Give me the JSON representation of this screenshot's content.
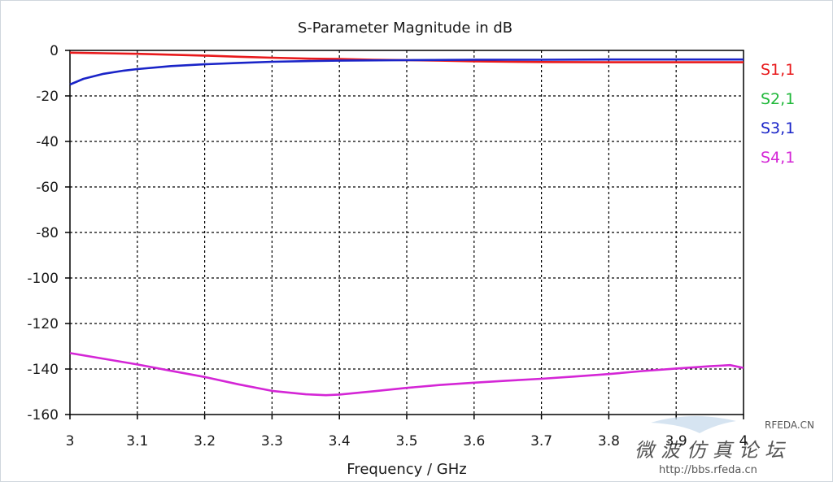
{
  "chart_data": {
    "type": "line",
    "title": "S-Parameter Magnitude in dB",
    "xlabel": "Frequency / GHz",
    "ylabel": "",
    "xlim": [
      3,
      4
    ],
    "ylim": [
      -160,
      0
    ],
    "xticks": [
      3,
      3.1,
      3.2,
      3.3,
      3.4,
      3.5,
      3.6,
      3.7,
      3.8,
      3.9,
      4
    ],
    "xtick_labels": [
      "3",
      "3.1",
      "3.2",
      "3.3",
      "3.4",
      "3.5",
      "3.6",
      "3.7",
      "3.8",
      "3.9",
      "4"
    ],
    "yticks": [
      0,
      -20,
      -40,
      -60,
      -80,
      -100,
      -120,
      -140,
      -160
    ],
    "ytick_labels": [
      "0",
      "-20",
      "-40",
      "-60",
      "-80",
      "-100",
      "-120",
      "-140",
      "-160"
    ],
    "grid": true,
    "legend_position": "right",
    "series": [
      {
        "name": "S1,1",
        "color": "#e8191b",
        "x": [
          3.0,
          3.1,
          3.2,
          3.25,
          3.3,
          3.35,
          3.4,
          3.45,
          3.5,
          3.55,
          3.6,
          3.65,
          3.7,
          3.8,
          3.9,
          4.0
        ],
        "y": [
          -1.0,
          -1.5,
          -2.3,
          -2.8,
          -3.2,
          -3.6,
          -3.8,
          -4.1,
          -4.3,
          -4.5,
          -4.8,
          -5.0,
          -5.1,
          -5.2,
          -5.2,
          -5.2
        ]
      },
      {
        "name": "S2,1",
        "color": "#20b83a",
        "x": [],
        "y": []
      },
      {
        "name": "S3,1",
        "color": "#1a24c8",
        "x": [
          3.0,
          3.02,
          3.05,
          3.08,
          3.1,
          3.15,
          3.2,
          3.25,
          3.3,
          3.35,
          3.4,
          3.5,
          3.6,
          3.7,
          3.8,
          3.9,
          4.0
        ],
        "y": [
          -15.0,
          -12.5,
          -10.3,
          -8.9,
          -8.2,
          -6.9,
          -6.1,
          -5.5,
          -5.0,
          -4.7,
          -4.5,
          -4.3,
          -4.1,
          -4.1,
          -4.0,
          -4.0,
          -4.0
        ]
      },
      {
        "name": "S4,1",
        "color": "#d426d6",
        "x": [
          3.0,
          3.05,
          3.1,
          3.15,
          3.2,
          3.25,
          3.3,
          3.35,
          3.38,
          3.4,
          3.45,
          3.5,
          3.55,
          3.6,
          3.65,
          3.7,
          3.75,
          3.8,
          3.85,
          3.9,
          3.95,
          3.98,
          4.0
        ],
        "y": [
          -133.0,
          -135.5,
          -138.0,
          -140.8,
          -143.5,
          -146.7,
          -149.6,
          -151.1,
          -151.5,
          -151.2,
          -149.8,
          -148.3,
          -147.0,
          -146.0,
          -145.1,
          -144.3,
          -143.3,
          -142.2,
          -140.9,
          -139.8,
          -138.8,
          -138.3,
          -139.5
        ]
      }
    ]
  },
  "watermark": {
    "brand": "RFEDA.CN",
    "cn_text": "微波仿真论坛",
    "url": "http://bbs.rfeda.cn"
  }
}
